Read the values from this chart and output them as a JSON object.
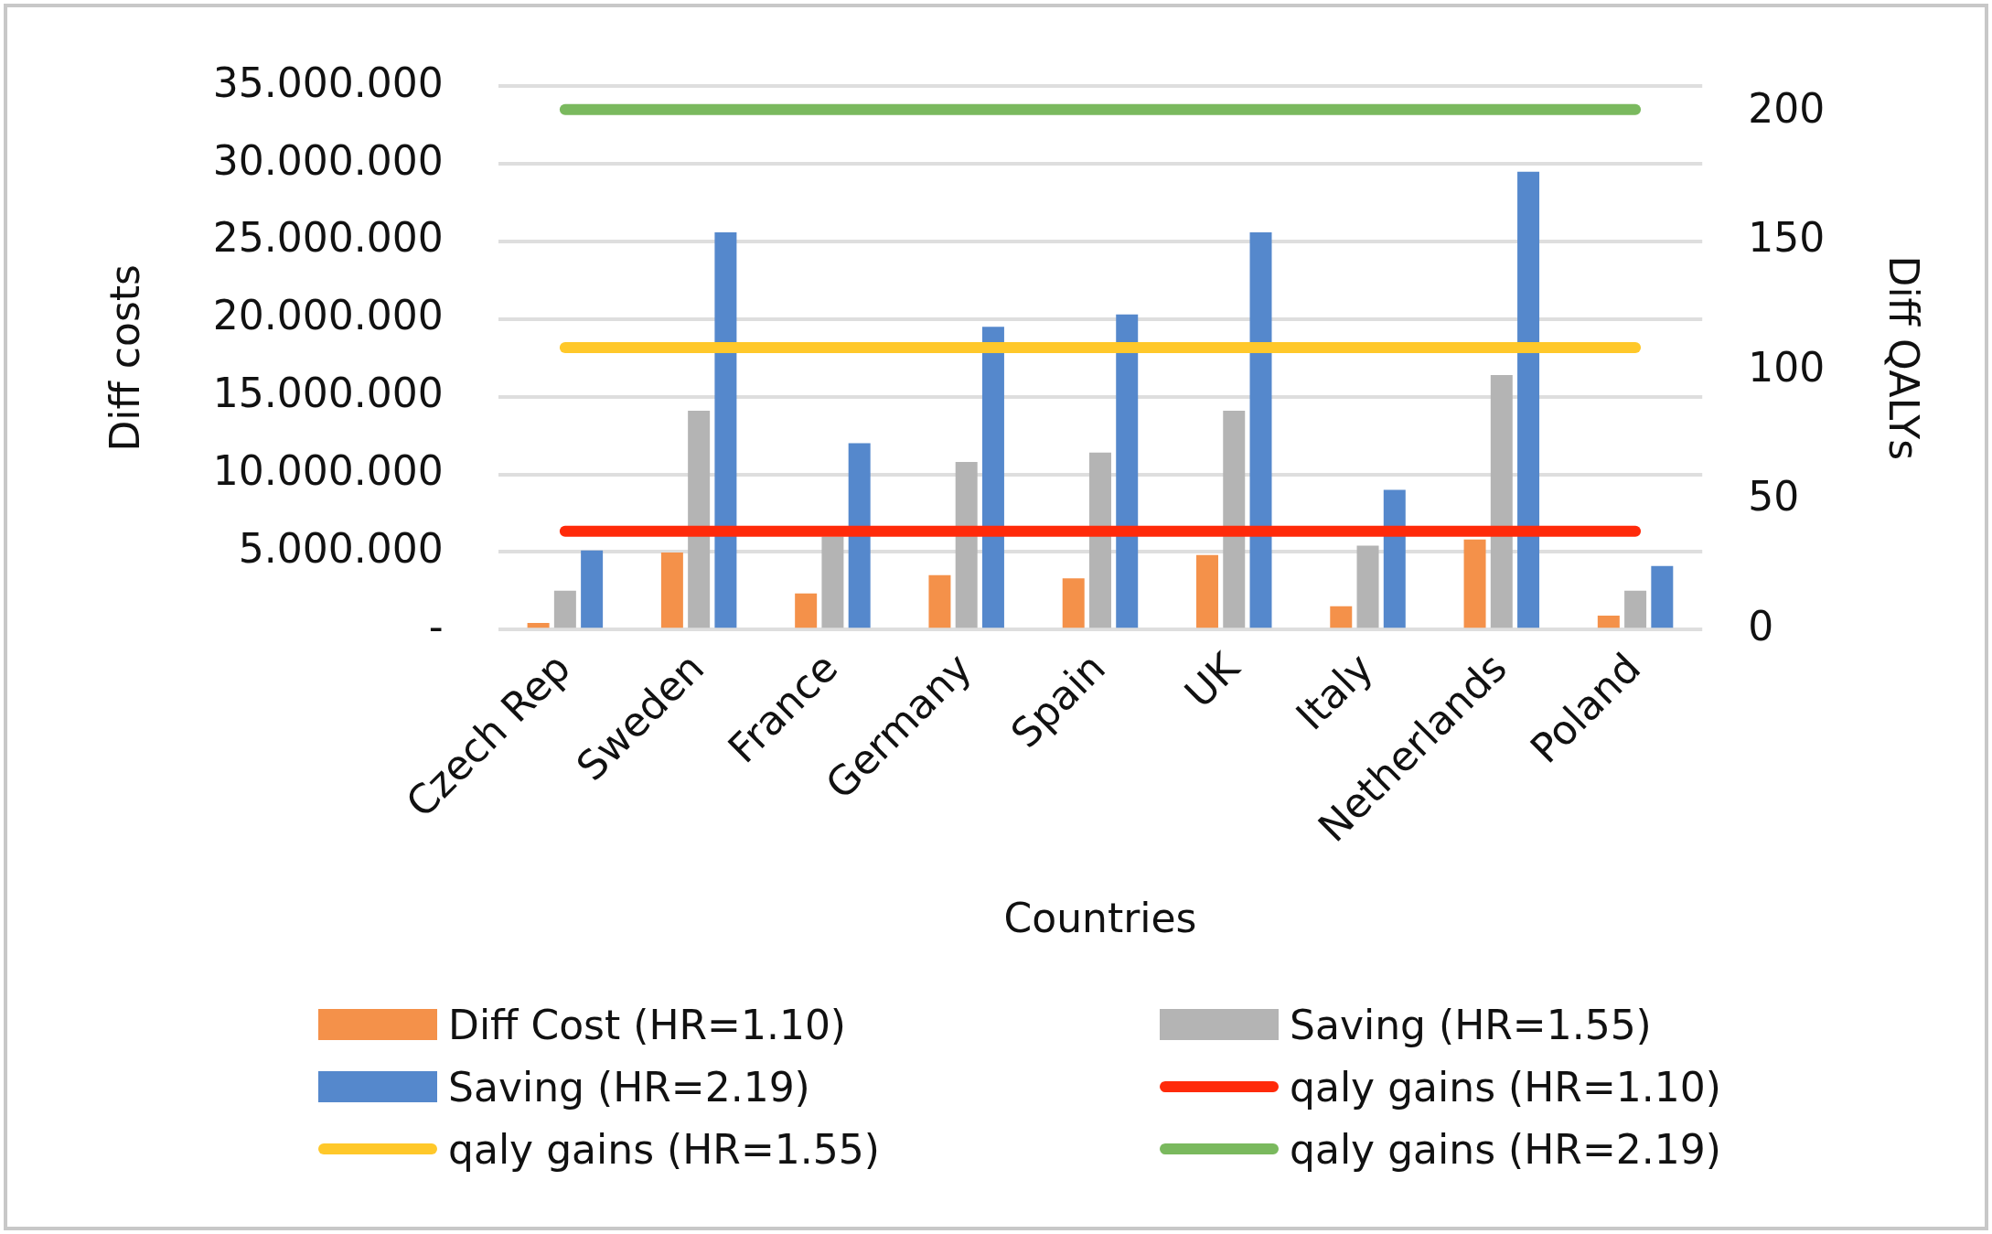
{
  "chart_data": {
    "type": "bar",
    "xlabel": "Countries",
    "ylabel": "Diff costs",
    "y2label": "Diff QALYs",
    "categories": [
      "Czech Rep",
      "Sweden",
      "France",
      "Germany",
      "Spain",
      "UK",
      "Italy",
      "Netherlands",
      "Poland"
    ],
    "series": [
      {
        "name": "Diff Cost (HR=1.10)",
        "color": "#f4914a",
        "values": [
          420000,
          4960000,
          2330000,
          3500000,
          3300000,
          4800000,
          1500000,
          5800000,
          900000
        ]
      },
      {
        "name": "Saving (HR=1.55)",
        "color": "#b4b4b4",
        "values": [
          2500000,
          14100000,
          6000000,
          10800000,
          11400000,
          14100000,
          5400000,
          16400000,
          2500000
        ]
      },
      {
        "name": "Saving (HR=2.19)",
        "color": "#5588cc",
        "values": [
          5100000,
          25600000,
          12000000,
          19500000,
          20300000,
          25600000,
          9000000,
          29500000,
          4100000
        ]
      },
      {
        "name": "qaly gains (HR=1.10)",
        "color": "#ff2a0a",
        "type": "line",
        "axis": "y2",
        "values": [
          38,
          38,
          38,
          38,
          38,
          38,
          38,
          38,
          38
        ]
      },
      {
        "name": "qaly gains (HR=1.55)",
        "color": "#ffc82a",
        "type": "line",
        "axis": "y2",
        "values": [
          109,
          109,
          109,
          109,
          109,
          109,
          109,
          109,
          109
        ]
      },
      {
        "name": "qaly gains (HR=2.19)",
        "color": "#7ab95e",
        "type": "line",
        "axis": "y2",
        "values": [
          201,
          201,
          201,
          201,
          201,
          201,
          201,
          201,
          201
        ]
      }
    ],
    "ylim": [
      0,
      35000000
    ],
    "yticks": [
      {
        "value": 0,
        "label": "-"
      },
      {
        "value": 5000000,
        "label": "5.000.000"
      },
      {
        "value": 10000000,
        "label": "10.000.000"
      },
      {
        "value": 15000000,
        "label": "15.000.000"
      },
      {
        "value": 20000000,
        "label": "20.000.000"
      },
      {
        "value": 25000000,
        "label": "25.000.000"
      },
      {
        "value": 30000000,
        "label": "30.000.000"
      },
      {
        "value": 35000000,
        "label": "35.000.000"
      }
    ],
    "y2lim": [
      0,
      210
    ],
    "y2ticks": [
      0,
      50,
      100,
      150,
      200
    ],
    "grid": "y",
    "legend": "bottom",
    "marker": "none",
    "line_style": "solid"
  }
}
